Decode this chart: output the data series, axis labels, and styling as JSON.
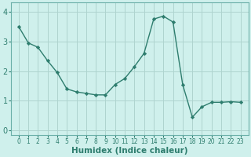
{
  "x": [
    0,
    1,
    2,
    3,
    4,
    5,
    6,
    7,
    8,
    9,
    10,
    11,
    12,
    13,
    14,
    15,
    16,
    17,
    18,
    19,
    20,
    21,
    22,
    23
  ],
  "y": [
    3.5,
    2.95,
    2.8,
    2.35,
    1.95,
    1.4,
    1.3,
    1.25,
    1.2,
    1.2,
    1.55,
    1.75,
    2.15,
    2.6,
    3.75,
    3.85,
    3.65,
    1.55,
    0.45,
    0.8,
    0.95,
    0.95,
    0.97,
    0.95
  ],
  "line_color": "#2e7d6e",
  "marker": "D",
  "marker_size": 2.2,
  "bg_color": "#cff0ec",
  "grid_color": "#aed4cf",
  "xlabel": "Humidex (Indice chaleur)",
  "ylim": [
    -0.15,
    4.3
  ],
  "xlim": [
    -0.8,
    23.8
  ],
  "yticks": [
    0,
    1,
    2,
    3,
    4
  ],
  "xticks": [
    0,
    1,
    2,
    3,
    4,
    5,
    6,
    7,
    8,
    9,
    10,
    11,
    12,
    13,
    14,
    15,
    16,
    17,
    18,
    19,
    20,
    21,
    22,
    23
  ],
  "tick_color": "#2e7d6e",
  "ytick_fontsize": 7,
  "xtick_fontsize": 5.5,
  "xlabel_fontsize": 7.5,
  "xlabel_fontweight": "bold",
  "line_width": 1.0,
  "spine_color": "#6aafa8"
}
